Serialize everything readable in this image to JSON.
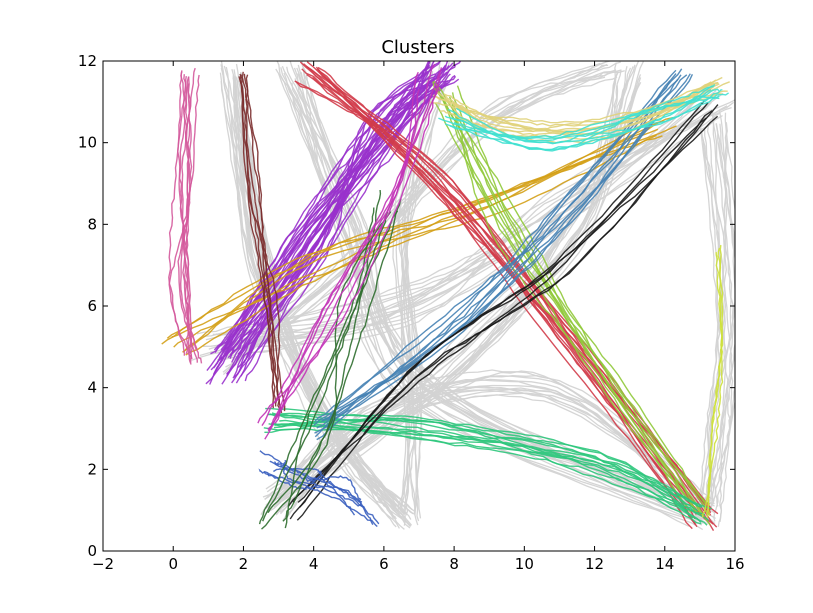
{
  "chart_data": {
    "type": "line",
    "title": "Clusters",
    "xlabel": "",
    "ylabel": "",
    "xlim": [
      -2,
      16
    ],
    "ylim": [
      0,
      12
    ],
    "xticks": [
      -2,
      0,
      2,
      4,
      6,
      8,
      10,
      12,
      14,
      16
    ],
    "yticks": [
      0,
      2,
      4,
      6,
      8,
      10,
      12
    ],
    "xtick_labels": [
      "−2",
      "0",
      "2",
      "4",
      "6",
      "8",
      "10",
      "12",
      "14",
      "16"
    ],
    "ytick_labels": [
      "0",
      "2",
      "4",
      "6",
      "8",
      "10",
      "12"
    ],
    "grid": false,
    "legend": "none",
    "series": [
      {
        "color": "#d3d3d3",
        "bundles": [
          {
            "count": 26,
            "spread": 0.35,
            "points": [
              [
                1.6,
                11.7
              ],
              [
                2.5,
                7.0
              ],
              [
                4.5,
                3.0
              ],
              [
                6.6,
                0.8
              ]
            ]
          },
          {
            "count": 20,
            "spread": 0.45,
            "points": [
              [
                3.3,
                11.7
              ],
              [
                5.0,
                8.0
              ],
              [
                7.0,
                4.0
              ],
              [
                15.0,
                0.9
              ]
            ]
          },
          {
            "count": 18,
            "spread": 0.4,
            "points": [
              [
                13.0,
                11.7
              ],
              [
                11.5,
                8.0
              ],
              [
                8.0,
                4.5
              ],
              [
                3.0,
                1.2
              ]
            ]
          },
          {
            "count": 16,
            "spread": 0.5,
            "points": [
              [
                15.6,
                11.0
              ],
              [
                11.0,
                8.5
              ],
              [
                6.5,
                6.0
              ],
              [
                1.0,
                5.0
              ]
            ]
          },
          {
            "count": 14,
            "spread": 0.4,
            "points": [
              [
                15.4,
                10.5
              ],
              [
                15.8,
                6.0
              ],
              [
                15.5,
                3.0
              ],
              [
                15.2,
                0.9
              ]
            ]
          },
          {
            "count": 14,
            "spread": 0.45,
            "points": [
              [
                2.8,
                1.0
              ],
              [
                6.0,
                3.5
              ],
              [
                11.0,
                4.0
              ],
              [
                15.0,
                1.0
              ]
            ]
          },
          {
            "count": 12,
            "spread": 0.35,
            "points": [
              [
                7.6,
                11.8
              ],
              [
                6.5,
                8.0
              ],
              [
                6.8,
                4.0
              ],
              [
                6.7,
                0.8
              ]
            ]
          },
          {
            "count": 12,
            "spread": 0.35,
            "points": [
              [
                12.5,
                11.8
              ],
              [
                9.0,
                10.5
              ],
              [
                5.0,
                7.0
              ],
              [
                1.5,
                4.6
              ]
            ]
          }
        ]
      },
      {
        "color": "#9932cc",
        "bundles": [
          {
            "count": 34,
            "spread": 0.55,
            "points": [
              [
                1.5,
                4.5
              ],
              [
                3.8,
                7.5
              ],
              [
                6.0,
                10.3
              ],
              [
                7.7,
                11.8
              ]
            ]
          }
        ]
      },
      {
        "color": "#d4a017",
        "bundles": [
          {
            "count": 7,
            "spread": 0.35,
            "points": [
              [
                0.0,
                5.0
              ],
              [
                4.0,
                7.0
              ],
              [
                9.0,
                8.4
              ],
              [
                14.0,
                10.4
              ]
            ]
          }
        ]
      },
      {
        "color": "#d23c4a",
        "bundles": [
          {
            "count": 14,
            "spread": 0.4,
            "points": [
              [
                3.8,
                11.7
              ],
              [
                7.5,
                9.0
              ],
              [
                11.5,
                5.0
              ],
              [
                15.1,
                0.8
              ]
            ]
          }
        ]
      },
      {
        "color": "#90c93a",
        "bundles": [
          {
            "count": 9,
            "spread": 0.4,
            "points": [
              [
                7.7,
                11.2
              ],
              [
                9.5,
                8.0
              ],
              [
                12.5,
                4.0
              ],
              [
                15.0,
                0.9
              ]
            ]
          }
        ]
      },
      {
        "color": "#2ec67c",
        "bundles": [
          {
            "count": 12,
            "spread": 0.4,
            "points": [
              [
                2.8,
                3.2
              ],
              [
                7.0,
                3.0
              ],
              [
                12.0,
                2.2
              ],
              [
                15.1,
                0.8
              ]
            ]
          }
        ]
      },
      {
        "color": "#4682b4",
        "bundles": [
          {
            "count": 9,
            "spread": 0.4,
            "points": [
              [
                4.0,
                3.0
              ],
              [
                8.0,
                5.5
              ],
              [
                11.5,
                8.5
              ],
              [
                14.5,
                11.6
              ]
            ]
          }
        ]
      },
      {
        "color": "#1a1a1a",
        "bundles": [
          {
            "count": 6,
            "spread": 0.3,
            "points": [
              [
                3.5,
                1.0
              ],
              [
                7.0,
                4.5
              ],
              [
                11.0,
                7.0
              ],
              [
                15.3,
                10.8
              ]
            ]
          }
        ]
      },
      {
        "color": "#e0d27a",
        "bundles": [
          {
            "count": 10,
            "spread": 0.3,
            "points": [
              [
                7.6,
                11.0
              ],
              [
                9.5,
                10.4
              ],
              [
                12.5,
                10.4
              ],
              [
                15.6,
                11.4
              ]
            ]
          }
        ]
      },
      {
        "color": "#40e0d0",
        "bundles": [
          {
            "count": 8,
            "spread": 0.3,
            "points": [
              [
                7.8,
                10.6
              ],
              [
                10.5,
                10.0
              ],
              [
                13.5,
                10.6
              ],
              [
                15.6,
                11.3
              ]
            ]
          }
        ]
      },
      {
        "color": "#d45a9c",
        "bundles": [
          {
            "count": 9,
            "spread": 0.3,
            "points": [
              [
                0.5,
                11.6
              ],
              [
                0.3,
                9.0
              ],
              [
                0.2,
                6.5
              ],
              [
                0.5,
                4.8
              ]
            ]
          }
        ]
      },
      {
        "color": "#7b2e2e",
        "bundles": [
          {
            "count": 6,
            "spread": 0.2,
            "points": [
              [
                2.0,
                11.7
              ],
              [
                2.3,
                9.0
              ],
              [
                2.8,
                6.0
              ],
              [
                3.0,
                3.5
              ]
            ]
          }
        ]
      },
      {
        "color": "#3a5fbf",
        "bundles": [
          {
            "count": 7,
            "spread": 0.4,
            "points": [
              [
                2.8,
                2.2
              ],
              [
                3.6,
                1.8
              ],
              [
                4.6,
                1.6
              ],
              [
                5.5,
                0.9
              ]
            ]
          }
        ]
      },
      {
        "color": "#2f6e2f",
        "bundles": [
          {
            "count": 6,
            "spread": 0.5,
            "points": [
              [
                2.8,
                0.8
              ],
              [
                4.0,
                3.0
              ],
              [
                5.2,
                6.0
              ],
              [
                6.2,
                8.5
              ]
            ]
          }
        ]
      },
      {
        "color": "#cde03a",
        "bundles": [
          {
            "count": 3,
            "spread": 0.15,
            "points": [
              [
                15.6,
                7.4
              ],
              [
                15.5,
                5.0
              ],
              [
                15.4,
                3.0
              ],
              [
                15.2,
                0.9
              ]
            ]
          }
        ]
      },
      {
        "color": "#c233b7",
        "bundles": [
          {
            "count": 6,
            "spread": 0.45,
            "points": [
              [
                2.5,
                3.0
              ],
              [
                4.5,
                6.0
              ],
              [
                6.5,
                9.0
              ],
              [
                7.4,
                11.6
              ]
            ]
          }
        ]
      }
    ]
  }
}
